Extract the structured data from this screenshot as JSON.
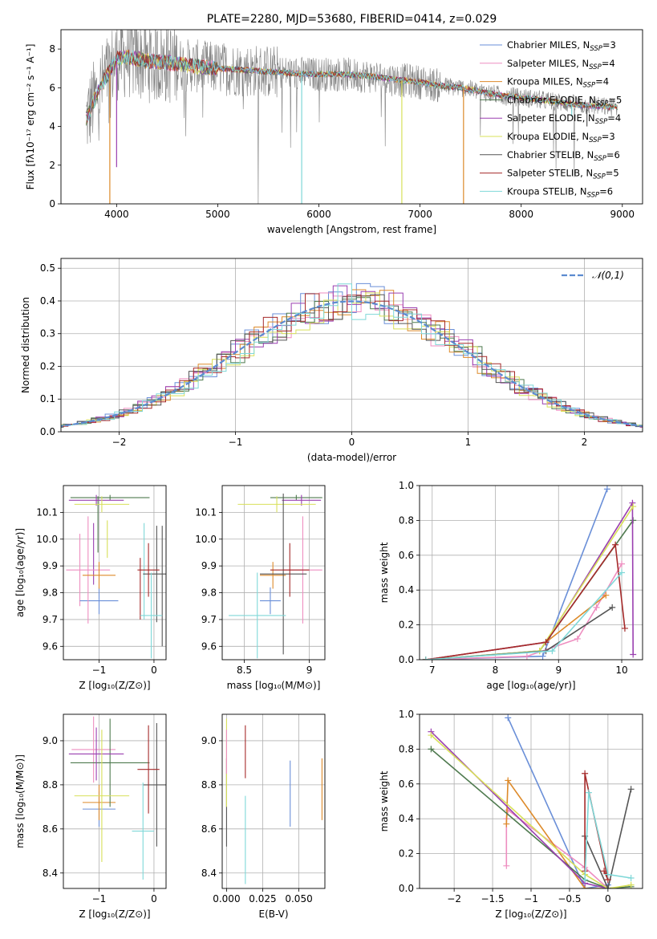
{
  "colors": {
    "Chabrier MILES": "#6a8fd8",
    "Salpeter MILES": "#ee8ec0",
    "Kroupa MILES": "#dd8a2a",
    "Chabrier ELODIE": "#4f7a4f",
    "Salpeter ELODIE": "#9a3fb0",
    "Kroupa ELODIE": "#d8e05a",
    "Chabrier STELIB": "#555555",
    "Salpeter STELIB": "#a52a2a",
    "Kroupa STELIB": "#7fd8d8",
    "data": "#808080",
    "normal": "#5b8bd0"
  },
  "chart_data": [
    {
      "type": "line",
      "title": "PLATE=2280, MJD=53680, FIBERID=0414, z=0.029",
      "xlabel": "wavelength [Angstrom, rest frame]",
      "ylabel": "Flux [fλ10⁻¹⁷ erg cm⁻² s⁻¹ A⁻¹]",
      "xlim": [
        3450,
        9200
      ],
      "ylim": [
        0,
        9
      ],
      "xticks": [
        4000,
        5000,
        6000,
        7000,
        8000,
        9000
      ],
      "yticks": [
        0,
        2,
        4,
        6,
        8
      ],
      "grid": false,
      "legend": "top-right",
      "series": [
        {
          "name": "Chabrier MILES, N",
          "sub": "SSP",
          "suffix": "=3"
        },
        {
          "name": "Salpeter MILES, N",
          "sub": "SSP",
          "suffix": "=4"
        },
        {
          "name": "Kroupa MILES, N",
          "sub": "SSP",
          "suffix": "=4"
        },
        {
          "name": "Chabrier ELODIE, N",
          "sub": "SSP",
          "suffix": "=5"
        },
        {
          "name": "Salpeter ELODIE, N",
          "sub": "SSP",
          "suffix": "=4"
        },
        {
          "name": "Kroupa ELODIE, N",
          "sub": "SSP",
          "suffix": "=3"
        },
        {
          "name": "Chabrier STELIB, N",
          "sub": "SSP",
          "suffix": "=6"
        },
        {
          "name": "Salpeter STELIB, N",
          "sub": "SSP",
          "suffix": "=5"
        },
        {
          "name": "Kroupa STELIB, N",
          "sub": "SSP",
          "suffix": "=6"
        }
      ],
      "continuum": {
        "x": [
          3700,
          3800,
          3900,
          4000,
          4100,
          4300,
          4500,
          4800,
          5000,
          5300,
          5600,
          5900,
          6200,
          6500,
          6800,
          7000,
          7200,
          7400,
          7600,
          7800,
          8000,
          8300,
          8600,
          8900
        ],
        "y": [
          4.4,
          5.6,
          6.6,
          7.5,
          7.6,
          7.4,
          7.3,
          7.1,
          7.0,
          6.9,
          6.8,
          6.7,
          6.7,
          6.6,
          6.4,
          6.3,
          6.1,
          6.0,
          5.8,
          5.6,
          5.5,
          5.3,
          5.1,
          5.0
        ]
      },
      "dips": [
        [
          3933,
          0
        ],
        [
          4000,
          1.9
        ],
        [
          5830,
          0
        ],
        [
          6820,
          0
        ],
        [
          7430,
          0
        ],
        [
          8500,
          4.5
        ],
        [
          8650,
          4.0
        ]
      ]
    },
    {
      "type": "bar",
      "xlabel": "(data-model)/error",
      "ylabel": "Normed distribution",
      "xlim": [
        -2.5,
        2.5
      ],
      "ylim": [
        0,
        0.53
      ],
      "xticks": [
        -2,
        -1,
        0,
        1,
        2
      ],
      "yticks": [
        0.0,
        0.1,
        0.2,
        0.3,
        0.4,
        0.5
      ],
      "grid": true,
      "legend": "top-right",
      "curve_label": "𝒩(0,1)",
      "curve": "normal(0,1) pdf"
    },
    {
      "type": "scatter",
      "xlabel": "Z [log₁₀(Z/Z⊙)]",
      "ylabel": "age  [log₁₀(age/yr)]",
      "xlim": [
        -1.65,
        0.22
      ],
      "ylim": [
        9.55,
        10.2
      ],
      "xticks": [
        -1,
        0
      ],
      "yticks": [
        9.6,
        9.7,
        9.8,
        9.9,
        10.0,
        10.1
      ],
      "grid": true,
      "points": [
        {
          "s": "Chabrier MILES",
          "x": -1.0,
          "y": 9.77,
          "xerr": 0.35,
          "yerr": 0.05
        },
        {
          "s": "Salpeter MILES",
          "x": -1.2,
          "y": 9.885,
          "xerr": 0.4,
          "yerr": 0.2
        },
        {
          "s": "Kroupa MILES",
          "x": -1.0,
          "y": 9.865,
          "xerr": 0.3,
          "yerr": 0.05
        },
        {
          "s": "Chabrier ELODIE",
          "x": -0.8,
          "y": 10.155,
          "xerr": 0.72,
          "yerr": 0.01
        },
        {
          "s": "Salpeter ELODIE",
          "x": -1.05,
          "y": 10.145,
          "xerr": 0.5,
          "yerr": 0.02
        },
        {
          "s": "Kroupa ELODIE",
          "x": -0.95,
          "y": 10.13,
          "xerr": 0.5,
          "yerr": 0.03
        },
        {
          "s": "Chabrier STELIB",
          "x": 0.05,
          "y": 9.87,
          "xerr": 0.25,
          "yerr": 0.18
        },
        {
          "s": "Salpeter STELIB",
          "x": -0.1,
          "y": 9.885,
          "xerr": 0.2,
          "yerr": 0.1
        },
        {
          "s": "Kroupa STELIB",
          "x": -0.05,
          "y": 9.715,
          "xerr": 0.2,
          "yerr": 0.16
        }
      ],
      "extra_vlines": [
        {
          "s": "Salpeter MILES",
          "x": -1.35,
          "y0": 9.75,
          "y1": 10.02
        },
        {
          "s": "Chabrier ELODIE",
          "x": -1.02,
          "y0": 9.95,
          "y1": 10.16
        },
        {
          "s": "Salpeter ELODIE",
          "x": -1.1,
          "y0": 9.83,
          "y1": 10.06
        },
        {
          "s": "Kroupa ELODIE",
          "x": -0.85,
          "y0": 9.93,
          "y1": 10.07
        },
        {
          "s": "Salpeter STELIB",
          "x": -0.25,
          "y0": 9.7,
          "y1": 9.93
        },
        {
          "s": "Kroupa STELIB",
          "x": -0.18,
          "y0": 9.7,
          "y1": 10.06
        },
        {
          "s": "Chabrier STELIB",
          "x": 0.15,
          "y0": 9.6,
          "y1": 10.05
        }
      ]
    },
    {
      "type": "scatter",
      "xlabel": "mass [log₁₀(M/M⊙)]",
      "xlim": [
        8.33,
        9.12
      ],
      "ylim": [
        9.55,
        10.2
      ],
      "xticks": [
        8.5,
        9.0
      ],
      "yticks": [
        9.6,
        9.7,
        9.8,
        9.9,
        10.0,
        10.1
      ],
      "grid": true,
      "points": [
        {
          "s": "Chabrier MILES",
          "x": 8.7,
          "y": 9.77,
          "xerr": 0.08,
          "yerr": 0.05
        },
        {
          "s": "Salpeter MILES",
          "x": 8.95,
          "y": 9.885,
          "xerr": 0.15,
          "yerr": 0.2
        },
        {
          "s": "Kroupa MILES",
          "x": 8.72,
          "y": 9.865,
          "xerr": 0.1,
          "yerr": 0.05
        },
        {
          "s": "Chabrier ELODIE",
          "x": 8.9,
          "y": 10.155,
          "xerr": 0.2,
          "yerr": 0.01
        },
        {
          "s": "Salpeter ELODIE",
          "x": 8.94,
          "y": 10.145,
          "xerr": 0.15,
          "yerr": 0.02
        },
        {
          "s": "Kroupa ELODIE",
          "x": 8.75,
          "y": 10.13,
          "xerr": 0.3,
          "yerr": 0.03
        },
        {
          "s": "Chabrier STELIB",
          "x": 8.8,
          "y": 9.87,
          "xerr": 0.18,
          "yerr": 0.3
        },
        {
          "s": "Salpeter STELIB",
          "x": 8.85,
          "y": 9.885,
          "xerr": 0.15,
          "yerr": 0.1
        },
        {
          "s": "Kroupa STELIB",
          "x": 8.6,
          "y": 9.715,
          "xerr": 0.22,
          "yerr": 0.16
        }
      ]
    },
    {
      "type": "line",
      "xlabel": "age  [log₁₀(age/yr)]",
      "ylabel": "mass weight",
      "xlim": [
        6.8,
        10.33
      ],
      "ylim": [
        0,
        1.0
      ],
      "xticks": [
        7,
        8,
        9,
        10
      ],
      "yticks": [
        0.0,
        0.2,
        0.4,
        0.6,
        0.8,
        1.0
      ],
      "grid": true,
      "series": [
        {
          "s": "Chabrier MILES",
          "x": [
            6.9,
            8.75,
            9.77
          ],
          "y": [
            0.0,
            0.02,
            0.98
          ]
        },
        {
          "s": "Salpeter MILES",
          "x": [
            6.9,
            8.5,
            9.3,
            9.6,
            10.0
          ],
          "y": [
            0.0,
            0.02,
            0.12,
            0.3,
            0.55
          ]
        },
        {
          "s": "Kroupa MILES",
          "x": [
            6.9,
            8.8,
            9.75
          ],
          "y": [
            0.0,
            0.1,
            0.37
          ]
        },
        {
          "s": "Chabrier ELODIE",
          "x": [
            6.9,
            8.7,
            10.18
          ],
          "y": [
            0.0,
            0.05,
            0.8
          ]
        },
        {
          "s": "Salpeter ELODIE",
          "x": [
            6.9,
            8.8,
            10.17,
            10.18
          ],
          "y": [
            0.0,
            0.1,
            0.9,
            0.03
          ]
        },
        {
          "s": "Kroupa ELODIE",
          "x": [
            6.9,
            8.7,
            10.18
          ],
          "y": [
            0.0,
            0.05,
            0.88
          ]
        },
        {
          "s": "Chabrier STELIB",
          "x": [
            6.9,
            8.8,
            9.85
          ],
          "y": [
            0.0,
            0.05,
            0.3
          ]
        },
        {
          "s": "Salpeter STELIB",
          "x": [
            6.9,
            8.8,
            9.9,
            10.05
          ],
          "y": [
            0.0,
            0.1,
            0.66,
            0.18
          ]
        },
        {
          "s": "Kroupa STELIB",
          "x": [
            6.9,
            8.9,
            10.0
          ],
          "y": [
            0.0,
            0.05,
            0.5
          ]
        }
      ]
    },
    {
      "type": "scatter",
      "xlabel": "Z [log₁₀(Z/Z⊙)]",
      "ylabel": "mass [log₁₀(M/M⊙)]",
      "xlim": [
        -1.65,
        0.22
      ],
      "ylim": [
        8.33,
        9.12
      ],
      "xticks": [
        -1,
        0
      ],
      "yticks": [
        8.4,
        8.6,
        8.8,
        9.0
      ],
      "grid": true,
      "points": [
        {
          "s": "Chabrier MILES",
          "x": -1.0,
          "y": 8.69,
          "xerr": 0.3,
          "yerr": 0.08
        },
        {
          "s": "Salpeter MILES",
          "x": -1.1,
          "y": 8.96,
          "xerr": 0.4,
          "yerr": 0.15
        },
        {
          "s": "Kroupa MILES",
          "x": -1.0,
          "y": 8.72,
          "xerr": 0.3,
          "yerr": 0.08
        },
        {
          "s": "Chabrier ELODIE",
          "x": -0.8,
          "y": 8.9,
          "xerr": 0.72,
          "yerr": 0.2
        },
        {
          "s": "Salpeter ELODIE",
          "x": -1.05,
          "y": 8.94,
          "xerr": 0.5,
          "yerr": 0.12
        },
        {
          "s": "Kroupa ELODIE",
          "x": -0.95,
          "y": 8.75,
          "xerr": 0.5,
          "yerr": 0.3
        },
        {
          "s": "Chabrier STELIB",
          "x": 0.05,
          "y": 8.8,
          "xerr": 0.25,
          "yerr": 0.28
        },
        {
          "s": "Salpeter STELIB",
          "x": -0.1,
          "y": 8.87,
          "xerr": 0.2,
          "yerr": 0.2
        },
        {
          "s": "Kroupa STELIB",
          "x": -0.2,
          "y": 8.59,
          "xerr": 0.2,
          "yerr": 0.22
        }
      ]
    },
    {
      "type": "scatter",
      "xlabel": "E(B-V)",
      "xlim": [
        -0.003,
        0.068
      ],
      "ylim": [
        8.33,
        9.12
      ],
      "xticks": [
        0.0,
        0.025,
        0.05
      ],
      "xtick_labels": [
        "0.000",
        "0.025",
        "0.050"
      ],
      "yticks": [
        8.4,
        8.6,
        8.8,
        9.0
      ],
      "grid": true,
      "points": [
        {
          "s": "Chabrier MILES",
          "x": 0.044,
          "y": 8.76,
          "yerr": 0.15
        },
        {
          "s": "Kroupa MILES",
          "x": 0.066,
          "y": 8.78,
          "yerr": 0.14
        },
        {
          "s": "Salpeter STELIB",
          "x": 0.013,
          "y": 8.95,
          "yerr": 0.12
        },
        {
          "s": "Kroupa STELIB",
          "x": 0.013,
          "y": 8.55,
          "yerr": 0.2
        },
        {
          "s": "Chabrier STELIB",
          "x": 0.0,
          "y": 8.72,
          "yerr": 0.2
        },
        {
          "s": "Kroupa ELODIE",
          "x": 0.0,
          "y": 8.9,
          "yerr": 0.2
        },
        {
          "s": "Salpeter MILES",
          "x": 0.0,
          "y": 8.95,
          "yerr": 0.1
        }
      ]
    },
    {
      "type": "line",
      "xlabel": "Z [log₁₀(Z/Z⊙)]",
      "ylabel": "mass weight",
      "xlim": [
        -2.45,
        0.45
      ],
      "ylim": [
        0,
        1.0
      ],
      "xticks": [
        -2.0,
        -1.5,
        -1.0,
        -0.5,
        0.0
      ],
      "yticks": [
        0.0,
        0.2,
        0.4,
        0.6,
        0.8,
        1.0
      ],
      "grid": true,
      "series": [
        {
          "s": "Chabrier MILES",
          "x": [
            -1.3,
            -0.3,
            0.0
          ],
          "y": [
            0.98,
            0.0,
            0.02
          ]
        },
        {
          "s": "Salpeter MILES",
          "x": [
            -1.32,
            -1.32,
            -1.3,
            -0.3,
            0.0
          ],
          "y": [
            0.13,
            0.4,
            0.45,
            0.12,
            0.0
          ]
        },
        {
          "s": "Kroupa MILES",
          "x": [
            -1.32,
            -1.3,
            -0.3,
            0.0
          ],
          "y": [
            0.37,
            0.62,
            0.0,
            0.0
          ]
        },
        {
          "s": "Chabrier ELODIE",
          "x": [
            -2.3,
            -0.3,
            0.0,
            0.3
          ],
          "y": [
            0.8,
            0.05,
            0.0,
            0.01
          ]
        },
        {
          "s": "Salpeter ELODIE",
          "x": [
            -2.3,
            -0.3,
            0.0
          ],
          "y": [
            0.9,
            0.03,
            0.0
          ]
        },
        {
          "s": "Kroupa ELODIE",
          "x": [
            -2.3,
            -0.3,
            0.0,
            0.3
          ],
          "y": [
            0.88,
            0.08,
            0.0,
            0.02
          ]
        },
        {
          "s": "Chabrier STELIB",
          "x": [
            -0.3,
            0.0,
            0.3
          ],
          "y": [
            0.3,
            0.0,
            0.57
          ]
        },
        {
          "s": "Salpeter STELIB",
          "x": [
            -0.3,
            -0.3,
            0.0,
            -0.05
          ],
          "y": [
            0.1,
            0.66,
            0.05,
            0.1
          ]
        },
        {
          "s": "Kroupa STELIB",
          "x": [
            -0.3,
            -0.25,
            0.0,
            0.3
          ],
          "y": [
            0.05,
            0.55,
            0.08,
            0.06
          ]
        }
      ]
    }
  ]
}
